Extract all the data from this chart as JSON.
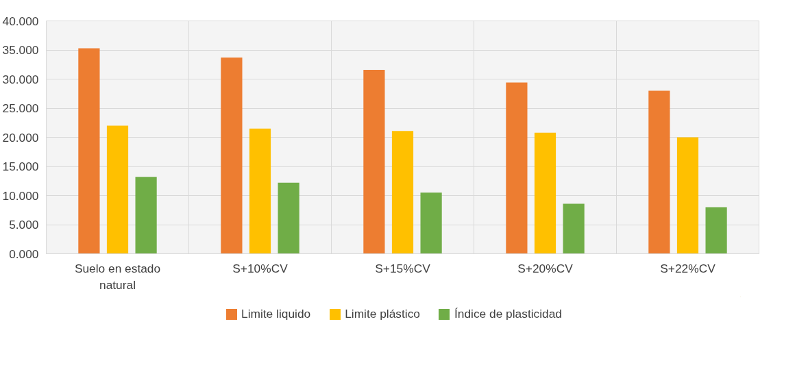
{
  "chart_data": {
    "type": "bar",
    "categories": [
      "Suelo en estado natural",
      "S+10%CV",
      "S+15%CV",
      "S+20%CV",
      "S+22%CV"
    ],
    "series": [
      {
        "name": "Limite liquido",
        "color": "#ed7d31",
        "values": [
          35.3,
          33.7,
          31.6,
          29.4,
          28.0
        ]
      },
      {
        "name": "Limite plástico",
        "color": "#ffc000",
        "values": [
          22.0,
          21.5,
          21.1,
          20.8,
          20.0
        ]
      },
      {
        "name": "Índice de plasticidad",
        "color": "#70ad47",
        "values": [
          13.2,
          12.2,
          10.5,
          8.6,
          8.0
        ]
      }
    ],
    "ylim": [
      0,
      40
    ],
    "yticks": [
      {
        "value": 0,
        "label": "0.000"
      },
      {
        "value": 5,
        "label": "5.000"
      },
      {
        "value": 10,
        "label": "10.000"
      },
      {
        "value": 15,
        "label": "15.000"
      },
      {
        "value": 20,
        "label": "20.000"
      },
      {
        "value": 25,
        "label": "25.000"
      },
      {
        "value": 30,
        "label": "30.000"
      },
      {
        "value": 35,
        "label": "35.000"
      },
      {
        "value": 40,
        "label": "40.000"
      }
    ],
    "grid": true,
    "legend": "bottom"
  }
}
